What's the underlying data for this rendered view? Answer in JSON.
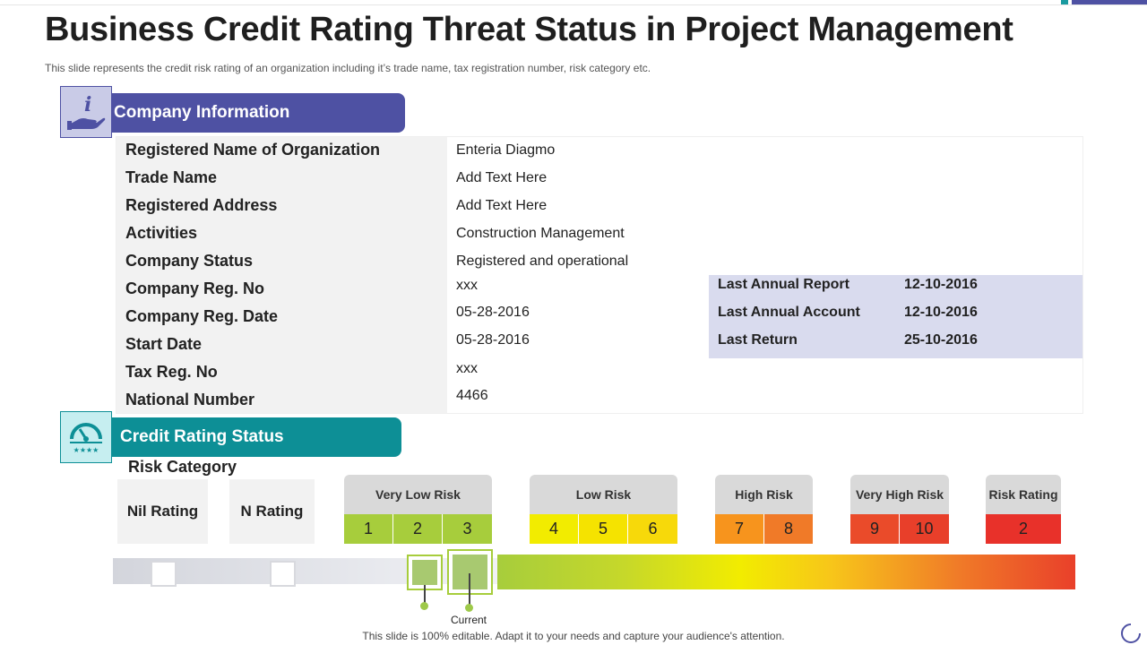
{
  "title": "Business Credit Rating Threat Status in Project Management",
  "subtitle": "This slide represents the credit risk rating of an organization including it’s trade name, tax registration number, risk category etc.",
  "company_section": {
    "icon": "hand-info-icon",
    "header": "Company Information",
    "rows": [
      {
        "label": "Registered Name of  Organization",
        "value": "Enteria Diagmo"
      },
      {
        "label": "Trade Name",
        "value": "Add Text Here"
      },
      {
        "label": "Registered Address",
        "value": "Add Text Here"
      },
      {
        "label": "Activities",
        "value": "Construction Management"
      },
      {
        "label": "Company Status",
        "value": "Registered and operational"
      },
      {
        "label": "Company Reg. No",
        "value": "xxx"
      },
      {
        "label": "Company Reg. Date",
        "value": "05-28-2016"
      },
      {
        "label": "Start Date",
        "value": "05-28-2016"
      },
      {
        "label": "Tax Reg. No",
        "value": "xxx"
      },
      {
        "label": "National Number",
        "value": "4466"
      }
    ],
    "annual": [
      {
        "label": "Last Annual Report",
        "value": "12-10-2016"
      },
      {
        "label": "Last Annual Account",
        "value": "12-10-2016"
      },
      {
        "label": "Last Return",
        "value": "25-10-2016"
      }
    ]
  },
  "credit_section": {
    "icon": "gauge-rating-icon",
    "header": "Credit Rating Status",
    "risk_category": "Risk Category",
    "nil_rating": "Nil Rating",
    "n_rating": "N Rating",
    "categories": [
      {
        "label": "Very Low Risk",
        "cells": [
          "1",
          "2",
          "3"
        ],
        "colors": [
          "#a7cd3c",
          "#a7cd3c",
          "#a7cd3c"
        ]
      },
      {
        "label": "Low Risk",
        "cells": [
          "4",
          "5",
          "6"
        ],
        "colors": [
          "#f2ec00",
          "#f5e300",
          "#f7d90a"
        ]
      },
      {
        "label": "High Risk",
        "cells": [
          "7",
          "8"
        ],
        "colors": [
          "#f7941d",
          "#f07a28"
        ]
      },
      {
        "label": "Very High Risk",
        "cells": [
          "9",
          "10"
        ],
        "colors": [
          "#ea4b2a",
          "#e83f2a"
        ]
      },
      {
        "label": "Risk  Rating",
        "cells": [
          "2"
        ],
        "colors": [
          "#e8312a"
        ]
      }
    ],
    "current_label": "Current"
  },
  "footer": "This slide is 100% editable. Adapt it to your needs and capture your audience's attention."
}
